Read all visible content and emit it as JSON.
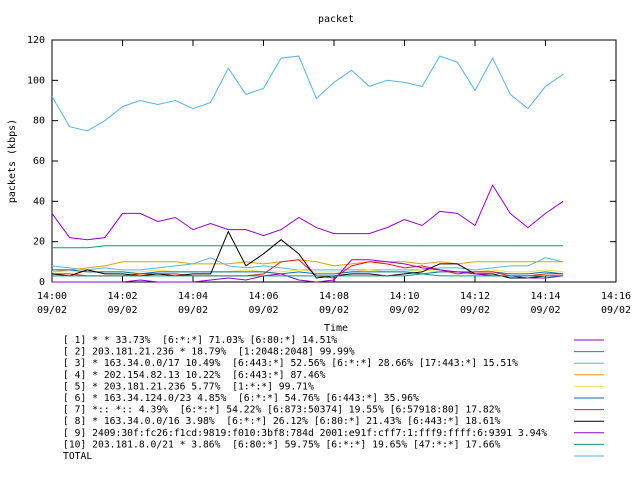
{
  "chart_data": {
    "type": "line",
    "title": "packet",
    "xlabel": "Time",
    "ylabel": "packets (kbps)",
    "x": [
      "14:00:00",
      "14:00:30",
      "14:01:00",
      "14:01:30",
      "14:02:00",
      "14:02:30",
      "14:03:00",
      "14:03:30",
      "14:04:00",
      "14:04:30",
      "14:05:00",
      "14:05:30",
      "14:06:00",
      "14:06:30",
      "14:07:00",
      "14:07:30",
      "14:08:00",
      "14:08:30",
      "14:09:00",
      "14:09:30",
      "14:10:00",
      "14:10:30",
      "14:11:00",
      "14:11:30",
      "14:12:00",
      "14:12:30",
      "14:13:00",
      "14:13:30",
      "14:14:00",
      "14:14:30"
    ],
    "xlim": [
      "14:00",
      "14:16"
    ],
    "xticks": [
      {
        "value": "14:00",
        "label": "14:00",
        "date": "09/02"
      },
      {
        "value": "14:02",
        "label": "14:02",
        "date": "09/02"
      },
      {
        "value": "14:04",
        "label": "14:04",
        "date": "09/02"
      },
      {
        "value": "14:06",
        "label": "14:06",
        "date": "09/02"
      },
      {
        "value": "14:08",
        "label": "14:08",
        "date": "09/02"
      },
      {
        "value": "14:10",
        "label": "14:10",
        "date": "09/02"
      },
      {
        "value": "14:12",
        "label": "14:12",
        "date": "09/02"
      },
      {
        "value": "14:14",
        "label": "14:14",
        "date": "09/02"
      },
      {
        "value": "14:16",
        "label": "14:16",
        "date": "09/02"
      }
    ],
    "ylim": [
      0,
      120
    ],
    "yticks": [
      0,
      20,
      40,
      60,
      80,
      100,
      120
    ],
    "series": [
      {
        "name": "[ 1] * * 33.73%  [6:*:*] 71.03% [6:80:*] 14.51%",
        "color": "#9400d3",
        "values": [
          34,
          22,
          21,
          22,
          34,
          34,
          30,
          32,
          26,
          29,
          26,
          26,
          23,
          26,
          32,
          27,
          24,
          24,
          24,
          27,
          31,
          28,
          35,
          34,
          28,
          48,
          34,
          27,
          34,
          40
        ]
      },
      {
        "name": "[ 2] 203.181.21.236 * 18.79%  [1:2048:2048] 99.99%",
        "color": "#009e73",
        "values": [
          17,
          17,
          17,
          18,
          18,
          18,
          18,
          18,
          18,
          18,
          18,
          18,
          18,
          18,
          18,
          18,
          18,
          18,
          18,
          18,
          18,
          18,
          18,
          18,
          18,
          18,
          18,
          18,
          18,
          18
        ]
      },
      {
        "name": "[ 3] * 163.34.0.0/17 10.49%  [6:443:*] 52.56% [6:*:*] 28.66% [17:443:*] 15.51%",
        "color": "#56b4e9",
        "values": [
          8,
          7,
          6,
          7,
          6,
          6,
          7,
          8,
          9,
          12,
          8,
          7,
          8,
          7,
          6,
          6,
          6,
          6,
          6,
          6,
          6,
          6,
          7,
          7,
          6,
          7,
          8,
          8,
          12,
          10
        ]
      },
      {
        "name": "[ 4] * 202.154.82.13 10.22%  [6:443:*] 87.46%",
        "color": "#e69f00",
        "values": [
          5,
          6,
          7,
          8,
          10,
          10,
          10,
          10,
          9,
          9,
          9,
          10,
          9,
          10,
          11,
          10,
          8,
          9,
          10,
          10,
          10,
          9,
          10,
          9,
          10,
          10,
          10,
          10,
          10,
          10
        ]
      },
      {
        "name": "[ 5] * 203.181.21.236 5.77%  [1:*:*] 99.71%",
        "color": "#f0e442",
        "values": [
          5,
          5,
          5,
          5,
          5,
          5,
          6,
          5,
          5,
          5,
          5,
          6,
          5,
          5,
          6,
          5,
          5,
          5,
          6,
          5,
          5,
          6,
          5,
          5,
          5,
          6,
          5,
          5,
          6,
          5
        ]
      },
      {
        "name": "[ 6] * 163.34.124.0/23 4.85%  [6:*:*] 54.76% [6:443:*] 35.96%",
        "color": "#0072b2",
        "values": [
          6,
          6,
          5,
          5,
          5,
          4,
          5,
          5,
          5,
          5,
          5,
          5,
          5,
          4,
          5,
          4,
          4,
          5,
          5,
          5,
          5,
          4,
          5,
          5,
          5,
          5,
          4,
          4,
          5,
          4
        ]
      },
      {
        "name": "[ 7] *:: *:: 4.39%  [6:*:*] 54.22% [6:873:50374] 19.55% [6:57918:80] 17.82%",
        "color": "#e51e10",
        "values": [
          4,
          4,
          3,
          3,
          3,
          4,
          4,
          4,
          3,
          3,
          3,
          3,
          4,
          10,
          11,
          3,
          2,
          8,
          10,
          9,
          7,
          8,
          6,
          4,
          5,
          5,
          3,
          3,
          4,
          4
        ]
      },
      {
        "name": "[ 8] * 163.34.0.0/16 3.98%  [6:*:*] 26.12% [6:80:*] 21.43% [6:443:*] 18.61%",
        "color": "#000000",
        "values": [
          4,
          3,
          6,
          4,
          4,
          3,
          4,
          3,
          4,
          4,
          25,
          8,
          14,
          21,
          14,
          2,
          3,
          4,
          4,
          3,
          4,
          5,
          9,
          9,
          4,
          4,
          2,
          2,
          3,
          3
        ]
      },
      {
        "name": "[ 9] 2409:30f:fc26:f1cd:9819:f010:3bf8:784d 2001:e91f:cff7:1:fff9:ffff:6:9391 3.94%",
        "color": "#9400d3",
        "values": [
          0,
          0,
          0,
          0,
          0,
          1,
          0,
          0,
          0,
          1,
          2,
          1,
          3,
          4,
          1,
          0,
          1,
          11,
          11,
          10,
          9,
          7,
          6,
          5,
          4,
          3,
          3,
          2,
          2,
          3
        ]
      },
      {
        "name": "[10] 203.181.8.0/21 * 3.86%  [6:80:*] 59.75% [6:*:*] 19.65% [47:*:*] 17.66%",
        "color": "#009e73",
        "values": [
          3,
          3,
          3,
          3,
          3,
          3,
          3,
          3,
          3,
          3,
          3,
          3,
          3,
          3,
          3,
          3,
          3,
          3,
          3,
          3,
          3,
          4,
          3,
          3,
          3,
          3,
          3,
          3,
          3,
          3
        ]
      },
      {
        "name": "TOTAL",
        "color": "#56b4e9",
        "values": [
          92,
          77,
          75,
          80,
          87,
          90,
          88,
          90,
          86,
          89,
          106,
          93,
          96,
          111,
          112,
          91,
          99,
          105,
          97,
          100,
          99,
          97,
          112,
          109,
          95,
          111,
          93,
          86,
          97,
          103
        ]
      }
    ]
  }
}
